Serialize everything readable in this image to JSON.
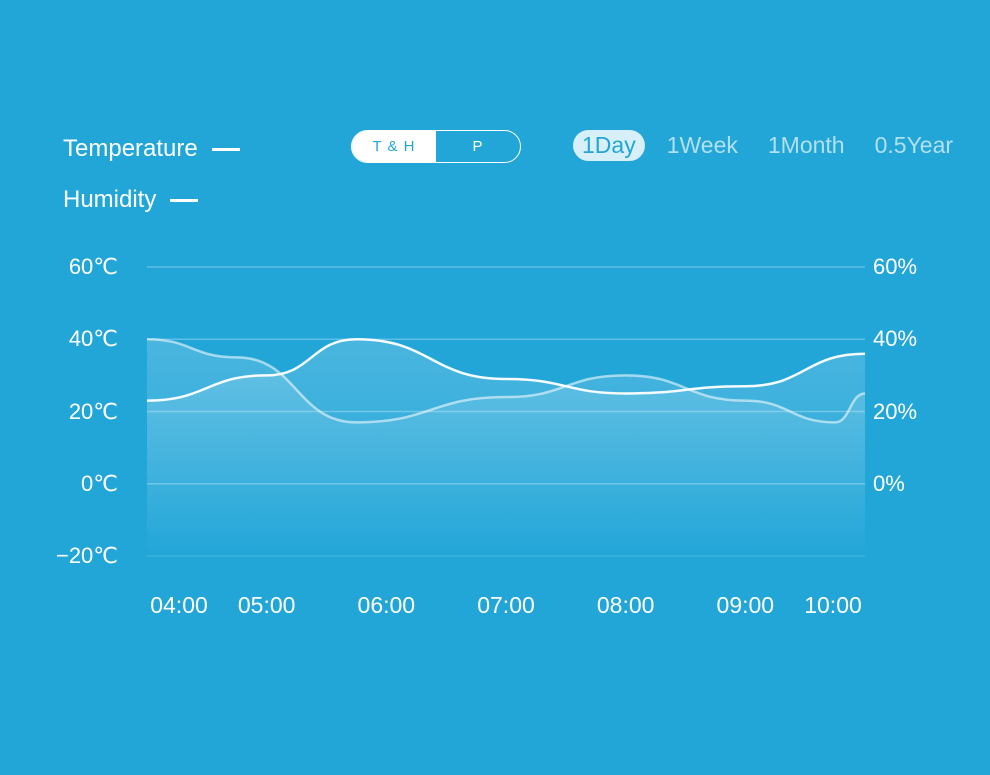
{
  "legend": {
    "temperature_label": "Temperature",
    "humidity_label": "Humidity"
  },
  "toggle": {
    "options": [
      "T & H",
      "P"
    ],
    "selected": "T & H"
  },
  "ranges": {
    "options": [
      "1Day",
      "1Week",
      "1Month",
      "0.5Year"
    ],
    "selected": "1Day"
  },
  "colors": {
    "background": "#22a6d8",
    "line": "#ffffff"
  },
  "chart_data": {
    "type": "line",
    "categories": [
      "04:00",
      "05:00",
      "06:00",
      "07:00",
      "08:00",
      "09:00",
      "10:00"
    ],
    "y_left_ticks": [
      "60℃",
      "40℃",
      "20℃",
      "0℃",
      "−20℃"
    ],
    "y_right_ticks": [
      "60%",
      "40%",
      "20%",
      "0%"
    ],
    "ylim_left": [
      -20,
      60
    ],
    "ylim_right": [
      -20,
      60
    ],
    "grid": true,
    "series": [
      {
        "name": "Temperature",
        "x": [
          "04:00",
          "05:00",
          "05:45",
          "07:00",
          "08:00",
          "09:00",
          "10:00"
        ],
        "values": [
          23,
          30,
          40,
          29,
          25,
          27,
          36
        ]
      },
      {
        "name": "Humidity",
        "x": [
          "04:00",
          "04:45",
          "05:45",
          "07:00",
          "08:00",
          "09:00",
          "09:45",
          "10:00"
        ],
        "values": [
          40,
          35,
          17,
          24,
          30,
          23,
          17,
          25
        ]
      }
    ]
  }
}
